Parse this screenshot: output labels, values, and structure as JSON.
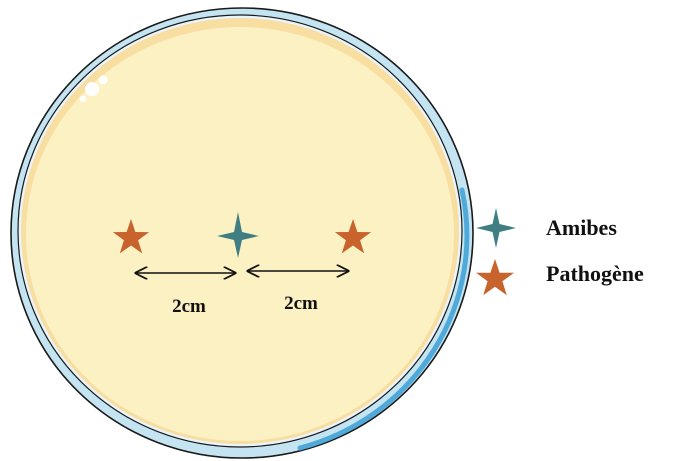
{
  "figure": {
    "distance_left": "2cm",
    "distance_right": "2cm"
  },
  "legend": {
    "items": [
      {
        "label": "Amibes",
        "icon": "four-point-star-icon",
        "color": "#3f7f83"
      },
      {
        "label": "Pathogène",
        "icon": "five-point-star-icon",
        "color": "#c8632d"
      }
    ]
  },
  "colors": {
    "agar": "#fcf1c3",
    "agar_rim": "#f8dea1",
    "dish_outer": "#c5e4f2",
    "dish_edge": "#4fa9d9",
    "outline": "#1a1a1a",
    "amibes": "#3f7f83",
    "pathogene": "#c8632d"
  }
}
